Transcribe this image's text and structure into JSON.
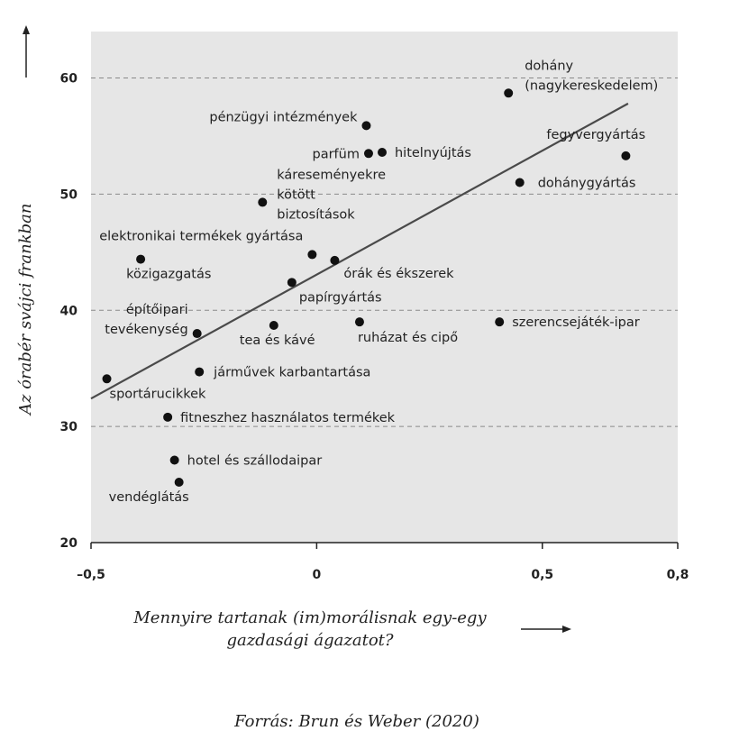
{
  "chart_data": {
    "type": "scatter",
    "xlabel": [
      "Mennyire tartanak (im)morálisnak egy-egy",
      "gazdasági ágazatot?"
    ],
    "ylabel": "Az órabér svájci frankban",
    "source": "Forrás: Brun és Weber (2020)",
    "xlim": [
      -0.5,
      0.8
    ],
    "ylim": [
      20,
      64
    ],
    "x_ticks": [
      {
        "value": -0.5,
        "label": "–0,5"
      },
      {
        "value": 0,
        "label": "0"
      },
      {
        "value": 0.5,
        "label": "0,5"
      },
      {
        "value": 0.8,
        "label": "0,8"
      }
    ],
    "y_ticks": [
      {
        "value": 20,
        "label": "20"
      },
      {
        "value": 30,
        "label": "30"
      },
      {
        "value": 40,
        "label": "40"
      },
      {
        "value": 50,
        "label": "50"
      },
      {
        "value": 60,
        "label": "60"
      }
    ],
    "gridlines_y": [
      30,
      40,
      50,
      60
    ],
    "trendline": {
      "x": [
        -0.5,
        0.69
      ],
      "y": [
        32.4,
        57.8
      ]
    },
    "points": [
      {
        "x": 0.425,
        "y": 58.7,
        "label": [
          "dohány",
          "(nagykereskedelem)"
        ]
      },
      {
        "x": 0.11,
        "y": 55.9,
        "label": [
          "pénzügyi intézmények"
        ]
      },
      {
        "x": 0.115,
        "y": 53.5,
        "label": [
          "parfüm"
        ]
      },
      {
        "x": 0.145,
        "y": 53.6,
        "label": [
          "hitelnyújtás"
        ]
      },
      {
        "x": 0.685,
        "y": 53.3,
        "label": [
          "fegyvergyártás"
        ]
      },
      {
        "x": 0.45,
        "y": 51.0,
        "label": [
          "dohánygyártás"
        ]
      },
      {
        "x": -0.12,
        "y": 49.3,
        "label": [
          "káreseményekre",
          "kötött",
          "biztosítások"
        ]
      },
      {
        "x": -0.01,
        "y": 44.8,
        "label": [
          "elektronikai termékek gyártása"
        ]
      },
      {
        "x": -0.39,
        "y": 44.4,
        "label": [
          "közigazgatás"
        ]
      },
      {
        "x": 0.04,
        "y": 44.3,
        "label": [
          "órák és ékszerek"
        ]
      },
      {
        "x": -0.055,
        "y": 42.4,
        "label": [
          "papírgyártás"
        ]
      },
      {
        "x": -0.265,
        "y": 38.0,
        "label": [
          "építőipari",
          "tevékenység"
        ]
      },
      {
        "x": -0.095,
        "y": 38.7,
        "label": [
          "tea és kávé"
        ]
      },
      {
        "x": 0.095,
        "y": 39.0,
        "label": [
          "ruházat és cipő"
        ]
      },
      {
        "x": 0.405,
        "y": 39.0,
        "label": [
          "szerencsejáték-ipar"
        ]
      },
      {
        "x": -0.26,
        "y": 34.7,
        "label": [
          "járművek karbantartása"
        ]
      },
      {
        "x": -0.465,
        "y": 34.1,
        "label": [
          "sportárucikkek"
        ]
      },
      {
        "x": -0.33,
        "y": 30.8,
        "label": [
          "fitneszhez használatos termékek"
        ]
      },
      {
        "x": -0.315,
        "y": 27.1,
        "label": [
          "hotel és szállodaipar"
        ]
      },
      {
        "x": -0.305,
        "y": 25.2,
        "label": [
          "vendéglátás"
        ]
      }
    ]
  }
}
